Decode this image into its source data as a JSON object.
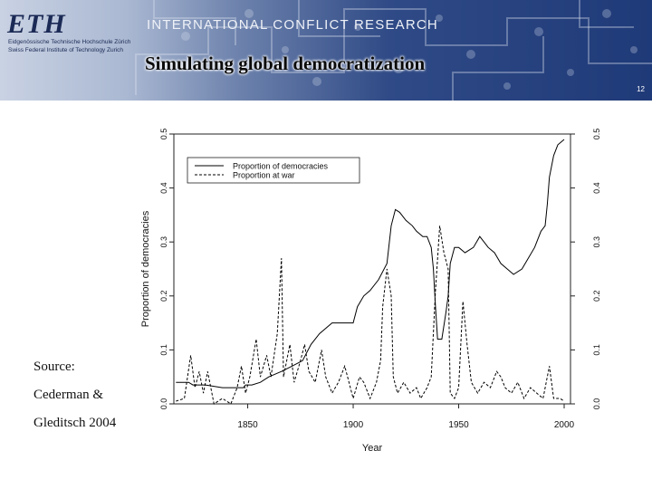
{
  "header": {
    "logo": "ETH",
    "logo_line1": "Eidgenössische Technische Hochschule Zürich",
    "logo_line2": "Swiss Federal Institute of Technology Zurich",
    "org_title": "INTERNATIONAL CONFLICT RESEARCH",
    "slide_title": "Simulating global democratization",
    "slide_number": "12"
  },
  "source": {
    "lines": [
      "Source:",
      "Cederman &",
      "Gleditsch 2004"
    ]
  },
  "colors": {
    "banner_dark": "#1f3a78",
    "line": "#000000"
  },
  "chart_data": {
    "type": "line",
    "xlabel": "Year",
    "ylabel": "Proportion of democracies",
    "xlim": [
      1815,
      2003
    ],
    "ylim": [
      0,
      0.5
    ],
    "x_ticks": [
      1850,
      1900,
      1950,
      2000
    ],
    "y_ticks": [
      "0.0",
      "0.1",
      "0.2",
      "0.3",
      "0.4",
      "0.5"
    ],
    "grid": false,
    "legend_position": "top-left",
    "series": [
      {
        "name": "Proportion of democracies",
        "style": "solid",
        "points": [
          [
            1816,
            0.04
          ],
          [
            1822,
            0.04
          ],
          [
            1824,
            0.035
          ],
          [
            1830,
            0.035
          ],
          [
            1838,
            0.03
          ],
          [
            1848,
            0.03
          ],
          [
            1849,
            0.035
          ],
          [
            1852,
            0.035
          ],
          [
            1856,
            0.04
          ],
          [
            1860,
            0.05
          ],
          [
            1866,
            0.06
          ],
          [
            1871,
            0.07
          ],
          [
            1876,
            0.08
          ],
          [
            1880,
            0.11
          ],
          [
            1884,
            0.13
          ],
          [
            1890,
            0.15
          ],
          [
            1894,
            0.15
          ],
          [
            1900,
            0.15
          ],
          [
            1902,
            0.18
          ],
          [
            1905,
            0.2
          ],
          [
            1908,
            0.21
          ],
          [
            1912,
            0.23
          ],
          [
            1916,
            0.26
          ],
          [
            1918,
            0.33
          ],
          [
            1920,
            0.36
          ],
          [
            1922,
            0.355
          ],
          [
            1925,
            0.34
          ],
          [
            1928,
            0.33
          ],
          [
            1930,
            0.32
          ],
          [
            1933,
            0.31
          ],
          [
            1935,
            0.31
          ],
          [
            1937,
            0.29
          ],
          [
            1938,
            0.25
          ],
          [
            1939,
            0.18
          ],
          [
            1940,
            0.12
          ],
          [
            1942,
            0.12
          ],
          [
            1944,
            0.17
          ],
          [
            1945,
            0.2
          ],
          [
            1946,
            0.26
          ],
          [
            1948,
            0.29
          ],
          [
            1950,
            0.29
          ],
          [
            1953,
            0.28
          ],
          [
            1957,
            0.29
          ],
          [
            1960,
            0.31
          ],
          [
            1962,
            0.3
          ],
          [
            1964,
            0.29
          ],
          [
            1967,
            0.28
          ],
          [
            1970,
            0.26
          ],
          [
            1973,
            0.25
          ],
          [
            1976,
            0.24
          ],
          [
            1980,
            0.25
          ],
          [
            1983,
            0.27
          ],
          [
            1986,
            0.29
          ],
          [
            1989,
            0.32
          ],
          [
            1991,
            0.33
          ],
          [
            1992,
            0.37
          ],
          [
            1993,
            0.42
          ],
          [
            1995,
            0.46
          ],
          [
            1997,
            0.48
          ],
          [
            2000,
            0.49
          ]
        ]
      },
      {
        "name": "Proportion at war",
        "style": "dashed",
        "points": [
          [
            1816,
            0.005
          ],
          [
            1820,
            0.01
          ],
          [
            1823,
            0.09
          ],
          [
            1825,
            0.03
          ],
          [
            1827,
            0.06
          ],
          [
            1829,
            0.02
          ],
          [
            1831,
            0.06
          ],
          [
            1834,
            0.0
          ],
          [
            1838,
            0.01
          ],
          [
            1842,
            0.0
          ],
          [
            1845,
            0.03
          ],
          [
            1847,
            0.07
          ],
          [
            1849,
            0.02
          ],
          [
            1851,
            0.05
          ],
          [
            1854,
            0.12
          ],
          [
            1856,
            0.05
          ],
          [
            1859,
            0.09
          ],
          [
            1861,
            0.05
          ],
          [
            1864,
            0.13
          ],
          [
            1866,
            0.27
          ],
          [
            1867,
            0.05
          ],
          [
            1870,
            0.11
          ],
          [
            1872,
            0.04
          ],
          [
            1875,
            0.08
          ],
          [
            1877,
            0.11
          ],
          [
            1879,
            0.06
          ],
          [
            1882,
            0.04
          ],
          [
            1885,
            0.1
          ],
          [
            1887,
            0.05
          ],
          [
            1890,
            0.02
          ],
          [
            1893,
            0.04
          ],
          [
            1896,
            0.07
          ],
          [
            1898,
            0.04
          ],
          [
            1900,
            0.01
          ],
          [
            1903,
            0.05
          ],
          [
            1905,
            0.04
          ],
          [
            1908,
            0.01
          ],
          [
            1911,
            0.04
          ],
          [
            1913,
            0.08
          ],
          [
            1914,
            0.18
          ],
          [
            1916,
            0.25
          ],
          [
            1918,
            0.2
          ],
          [
            1919,
            0.05
          ],
          [
            1921,
            0.02
          ],
          [
            1924,
            0.04
          ],
          [
            1927,
            0.02
          ],
          [
            1930,
            0.03
          ],
          [
            1932,
            0.01
          ],
          [
            1935,
            0.03
          ],
          [
            1937,
            0.05
          ],
          [
            1939,
            0.21
          ],
          [
            1941,
            0.33
          ],
          [
            1943,
            0.28
          ],
          [
            1945,
            0.25
          ],
          [
            1946,
            0.02
          ],
          [
            1948,
            0.01
          ],
          [
            1950,
            0.03
          ],
          [
            1952,
            0.19
          ],
          [
            1954,
            0.11
          ],
          [
            1956,
            0.04
          ],
          [
            1959,
            0.02
          ],
          [
            1962,
            0.04
          ],
          [
            1965,
            0.03
          ],
          [
            1968,
            0.06
          ],
          [
            1970,
            0.05
          ],
          [
            1972,
            0.03
          ],
          [
            1975,
            0.02
          ],
          [
            1978,
            0.04
          ],
          [
            1981,
            0.01
          ],
          [
            1984,
            0.03
          ],
          [
            1987,
            0.02
          ],
          [
            1990,
            0.01
          ],
          [
            1993,
            0.07
          ],
          [
            1995,
            0.01
          ],
          [
            1998,
            0.01
          ],
          [
            2000,
            0.005
          ]
        ]
      }
    ]
  }
}
